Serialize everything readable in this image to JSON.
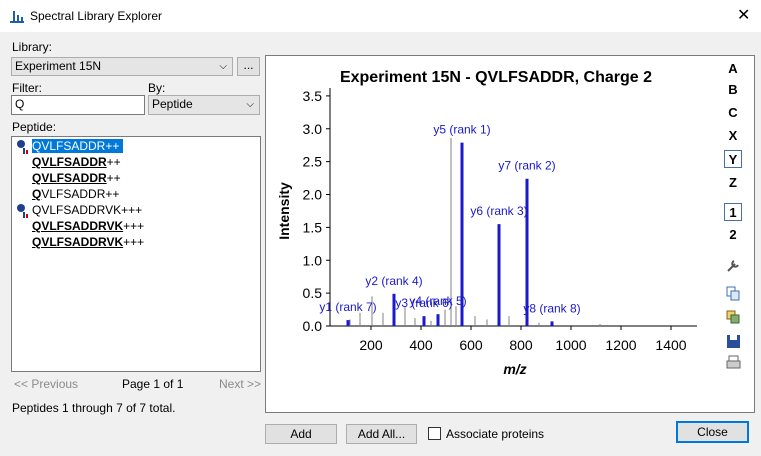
{
  "window_title": "Spectral Library Explorer",
  "library": {
    "label": "Library:",
    "value": "Experiment 15N",
    "browse": "..."
  },
  "filter": {
    "label": "Filter:",
    "value": "Q"
  },
  "by": {
    "label": "By:",
    "value": "Peptide"
  },
  "peptide_list": {
    "label": "Peptide:",
    "selected": 0,
    "items": [
      {
        "plain": "QVLFSADDR++",
        "icon": true
      },
      {
        "bold": "QVLFSADDR",
        "plain": "++"
      },
      {
        "bold": "QVLFSADDR",
        "plain": "++"
      },
      {
        "bold": "Q",
        "plain": "VLFSADDR++"
      },
      {
        "plain": "QVLFSADDRVK+++",
        "icon": true
      },
      {
        "bold": "QVLFSADDRVK",
        "plain": "+++"
      },
      {
        "bold": "QVLFSADDRVK",
        "plain": "+++"
      }
    ]
  },
  "paging": {
    "previous": "<< Previous",
    "page": "Page 1 of 1",
    "next": "Next >>"
  },
  "status": "Peptides 1 through 7 of 7 total.",
  "buttons": {
    "add": "Add",
    "add_all": "Add All...",
    "close": "Close"
  },
  "checkbox": {
    "label": "Associate proteins",
    "checked": false
  },
  "toolbar": [
    {
      "label": "A"
    },
    {
      "label": "B"
    },
    {
      "label": "C"
    },
    {
      "label": "X"
    },
    {
      "label": "Y",
      "active": true
    },
    {
      "label": "Z"
    },
    {
      "label": "1",
      "active": true
    },
    {
      "label": "2"
    }
  ],
  "chart_data": {
    "type": "spectrum",
    "title": "Experiment 15N - QVLFSADDR, Charge 2",
    "xlabel": "m/z",
    "ylabel": "Intensity",
    "xlim": [
      36,
      1504
    ],
    "ylim": [
      0,
      3.62
    ],
    "xticks": [
      200,
      400,
      600,
      800,
      1000,
      1200,
      1400
    ],
    "yticks": [
      {
        "value": 0,
        "label": "0.0"
      },
      {
        "value": 0.5,
        "label": "0.5"
      },
      {
        "value": 1,
        "label": "1.0"
      },
      {
        "value": 1.5,
        "label": "1.5"
      },
      {
        "value": 2,
        "label": "2.0"
      },
      {
        "value": 2.5,
        "label": "2.5"
      },
      {
        "value": 3,
        "label": "3.0"
      },
      {
        "value": 3.5,
        "label": "3.5"
      }
    ],
    "unlabeled_peaks": {
      "color": "#808080",
      "x": [
        116,
        156,
        204,
        248,
        336,
        376,
        440,
        496,
        520,
        540,
        616,
        664,
        752,
        872,
        1116
      ],
      "values": [
        0.1,
        0.2,
        0.45,
        0.2,
        0.3,
        0.12,
        0.08,
        0.25,
        2.86,
        0.3,
        0.15,
        0.1,
        0.15,
        0.05,
        0.03
      ]
    },
    "peaks": {
      "color": "#1a1acc",
      "x": [
        108,
        292,
        412,
        468,
        564,
        712,
        824,
        924
      ],
      "values": [
        0.09,
        0.49,
        0.15,
        0.18,
        2.79,
        1.55,
        2.24,
        0.07
      ],
      "labels": [
        "y1 (rank 7)",
        "y2 (rank 4)",
        "y3 (rank 6)",
        "y4 (rank 5)",
        "y5 (rank 1)",
        "y6 (rank 3)",
        "y7 (rank 2)",
        "y8 (rank 8)"
      ]
    }
  }
}
